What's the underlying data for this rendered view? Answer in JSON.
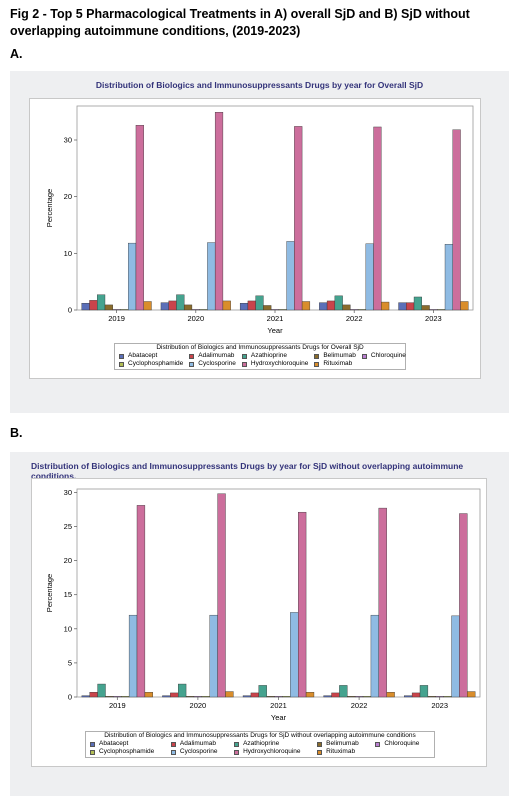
{
  "figure_title": "Fig 2 - Top 5 Pharmacological Treatments in A) overall SjD and B) SjD without overlapping autoimmune conditions, (2019-2023)",
  "panel_a_label": "A.",
  "panel_b_label": "B.",
  "colors": {
    "Abatacept": "#5b6fb8",
    "Adalimumab": "#c9444b",
    "Azathioprine": "#45a38f",
    "Belimumab": "#8a6c2c",
    "Chloroquine": "#b97fd1",
    "Cyclophosphamide": "#b1bd54",
    "Cyclosporine": "#8fbbe3",
    "Hydroxychloroquine": "#cc6e9c",
    "Rituximab": "#d98d2b"
  },
  "chart_data": [
    {
      "type": "bar",
      "title": "Distribution of Biologics and Immunosuppressants Drugs by year for Overall SjD",
      "xlabel": "Year",
      "ylabel": "Percentage",
      "ylim": [
        0,
        36
      ],
      "yticks": [
        "0",
        "10",
        "20",
        "30"
      ],
      "categories": [
        "2019",
        "2020",
        "2021",
        "2022",
        "2023"
      ],
      "legend_title": "Distribution of Biologics and Immunosuppressants Drugs for Overall SjD",
      "legend_position": "bottom",
      "series": [
        {
          "name": "Abatacept",
          "values": [
            1.2,
            1.3,
            1.2,
            1.3,
            1.3
          ]
        },
        {
          "name": "Adalimumab",
          "values": [
            1.7,
            1.6,
            1.6,
            1.6,
            1.3
          ]
        },
        {
          "name": "Azathioprine",
          "values": [
            2.7,
            2.7,
            2.5,
            2.5,
            2.3
          ]
        },
        {
          "name": "Belimumab",
          "values": [
            0.9,
            0.9,
            0.8,
            0.9,
            0.8
          ]
        },
        {
          "name": "Chloroquine",
          "values": [
            0.1,
            0.1,
            0.1,
            0.1,
            0.1
          ]
        },
        {
          "name": "Cyclophosphamide",
          "values": [
            0.1,
            0.1,
            0.1,
            0.1,
            0.1
          ]
        },
        {
          "name": "Cyclosporine",
          "values": [
            11.8,
            11.9,
            12.1,
            11.7,
            11.6
          ]
        },
        {
          "name": "Hydroxychloroquine",
          "values": [
            32.6,
            34.9,
            32.4,
            32.3,
            31.8
          ]
        },
        {
          "name": "Rituximab",
          "values": [
            1.5,
            1.6,
            1.5,
            1.4,
            1.5
          ]
        }
      ]
    },
    {
      "type": "bar",
      "title": "Distribution of Biologics and Immunosuppressants Drugs by year for SjD without overlapping autoimmune conditions.",
      "xlabel": "Year",
      "ylabel": "Percentage",
      "ylim": [
        0,
        30.5
      ],
      "yticks": [
        "0",
        "5",
        "10",
        "15",
        "20",
        "25",
        "30"
      ],
      "categories": [
        "2019",
        "2020",
        "2021",
        "2022",
        "2023"
      ],
      "legend_title": "Distribution of Biologics and Immunosuppressants Drugs for SjD without overlapping autoimmune conditions",
      "legend_position": "bottom",
      "series": [
        {
          "name": "Abatacept",
          "values": [
            0.2,
            0.2,
            0.2,
            0.2,
            0.2
          ]
        },
        {
          "name": "Adalimumab",
          "values": [
            0.7,
            0.6,
            0.6,
            0.6,
            0.6
          ]
        },
        {
          "name": "Azathioprine",
          "values": [
            1.9,
            1.9,
            1.7,
            1.7,
            1.7
          ]
        },
        {
          "name": "Belimumab",
          "values": [
            0.1,
            0.1,
            0.1,
            0.1,
            0.1
          ]
        },
        {
          "name": "Chloroquine",
          "values": [
            0.1,
            0.1,
            0.1,
            0.1,
            0.1
          ]
        },
        {
          "name": "Cyclophosphamide",
          "values": [
            0.1,
            0.1,
            0.1,
            0.1,
            0.1
          ]
        },
        {
          "name": "Cyclosporine",
          "values": [
            12.0,
            12.0,
            12.4,
            12.0,
            11.9
          ]
        },
        {
          "name": "Hydroxychloroquine",
          "values": [
            28.1,
            29.8,
            27.1,
            27.7,
            26.9
          ]
        },
        {
          "name": "Rituximab",
          "values": [
            0.7,
            0.8,
            0.7,
            0.7,
            0.8
          ]
        }
      ]
    }
  ]
}
